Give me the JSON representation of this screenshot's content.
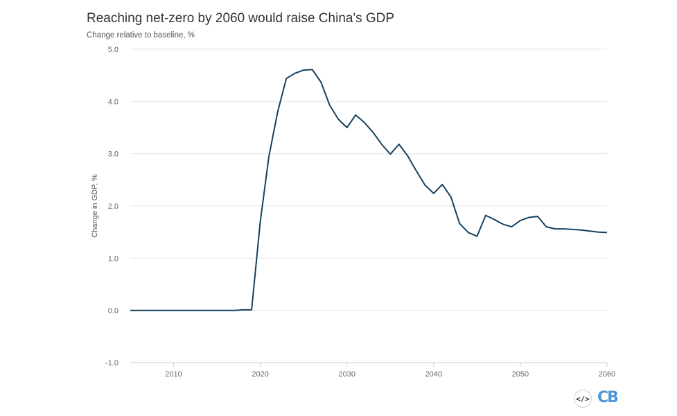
{
  "title": "Reaching net-zero by 2060 would raise China's GDP",
  "subtitle": "Change relative to baseline, %",
  "embed_icon": "</>",
  "logo_text": "CB",
  "colors": {
    "line": "#14405e",
    "grid": "#e6e6e6",
    "text": "#333333"
  },
  "chart_data": {
    "type": "line",
    "title": "Reaching net-zero by 2060 would raise China's GDP",
    "subtitle": "Change relative to baseline, %",
    "xlabel": "",
    "ylabel": "Change in GDP, %",
    "xlim": [
      2005,
      2060
    ],
    "ylim": [
      -1.0,
      5.0
    ],
    "xticks": [
      2010,
      2020,
      2030,
      2040,
      2050,
      2060
    ],
    "yticks": [
      5.0,
      4.0,
      3.0,
      2.0,
      1.0,
      0.0,
      -1.0
    ],
    "ytick_labels": [
      "5.0",
      "4.0",
      "3.0",
      "2.0",
      "1.0",
      "0.0",
      "-1.0"
    ],
    "grid": true,
    "legend": "none",
    "series": [
      {
        "x": [
          2005,
          2006,
          2007,
          2008,
          2009,
          2010,
          2011,
          2012,
          2013,
          2014,
          2015,
          2016,
          2017,
          2018,
          2019,
          2020,
          2021,
          2022,
          2023,
          2024,
          2025,
          2026,
          2027,
          2028,
          2029,
          2030,
          2031,
          2032,
          2033,
          2034,
          2035,
          2036,
          2037,
          2038,
          2039,
          2040,
          2041,
          2042,
          2043,
          2044,
          2045,
          2046,
          2047,
          2048,
          2049,
          2050,
          2051,
          2052,
          2053,
          2054,
          2055,
          2056,
          2057,
          2058,
          2059,
          2060
        ],
        "values": [
          0.0,
          0.0,
          0.0,
          0.0,
          0.0,
          0.0,
          0.0,
          0.0,
          0.0,
          0.0,
          0.0,
          0.0,
          0.0,
          0.01,
          0.01,
          1.7,
          2.95,
          3.8,
          4.44,
          4.54,
          4.6,
          4.61,
          4.37,
          3.93,
          3.66,
          3.5,
          3.74,
          3.6,
          3.41,
          3.18,
          2.99,
          3.18,
          2.96,
          2.67,
          2.4,
          2.24,
          2.41,
          2.17,
          1.66,
          1.49,
          1.42,
          1.82,
          1.74,
          1.65,
          1.6,
          1.72,
          1.78,
          1.8,
          1.6,
          1.56,
          1.56,
          1.55,
          1.54,
          1.52,
          1.5,
          1.49
        ]
      }
    ]
  }
}
